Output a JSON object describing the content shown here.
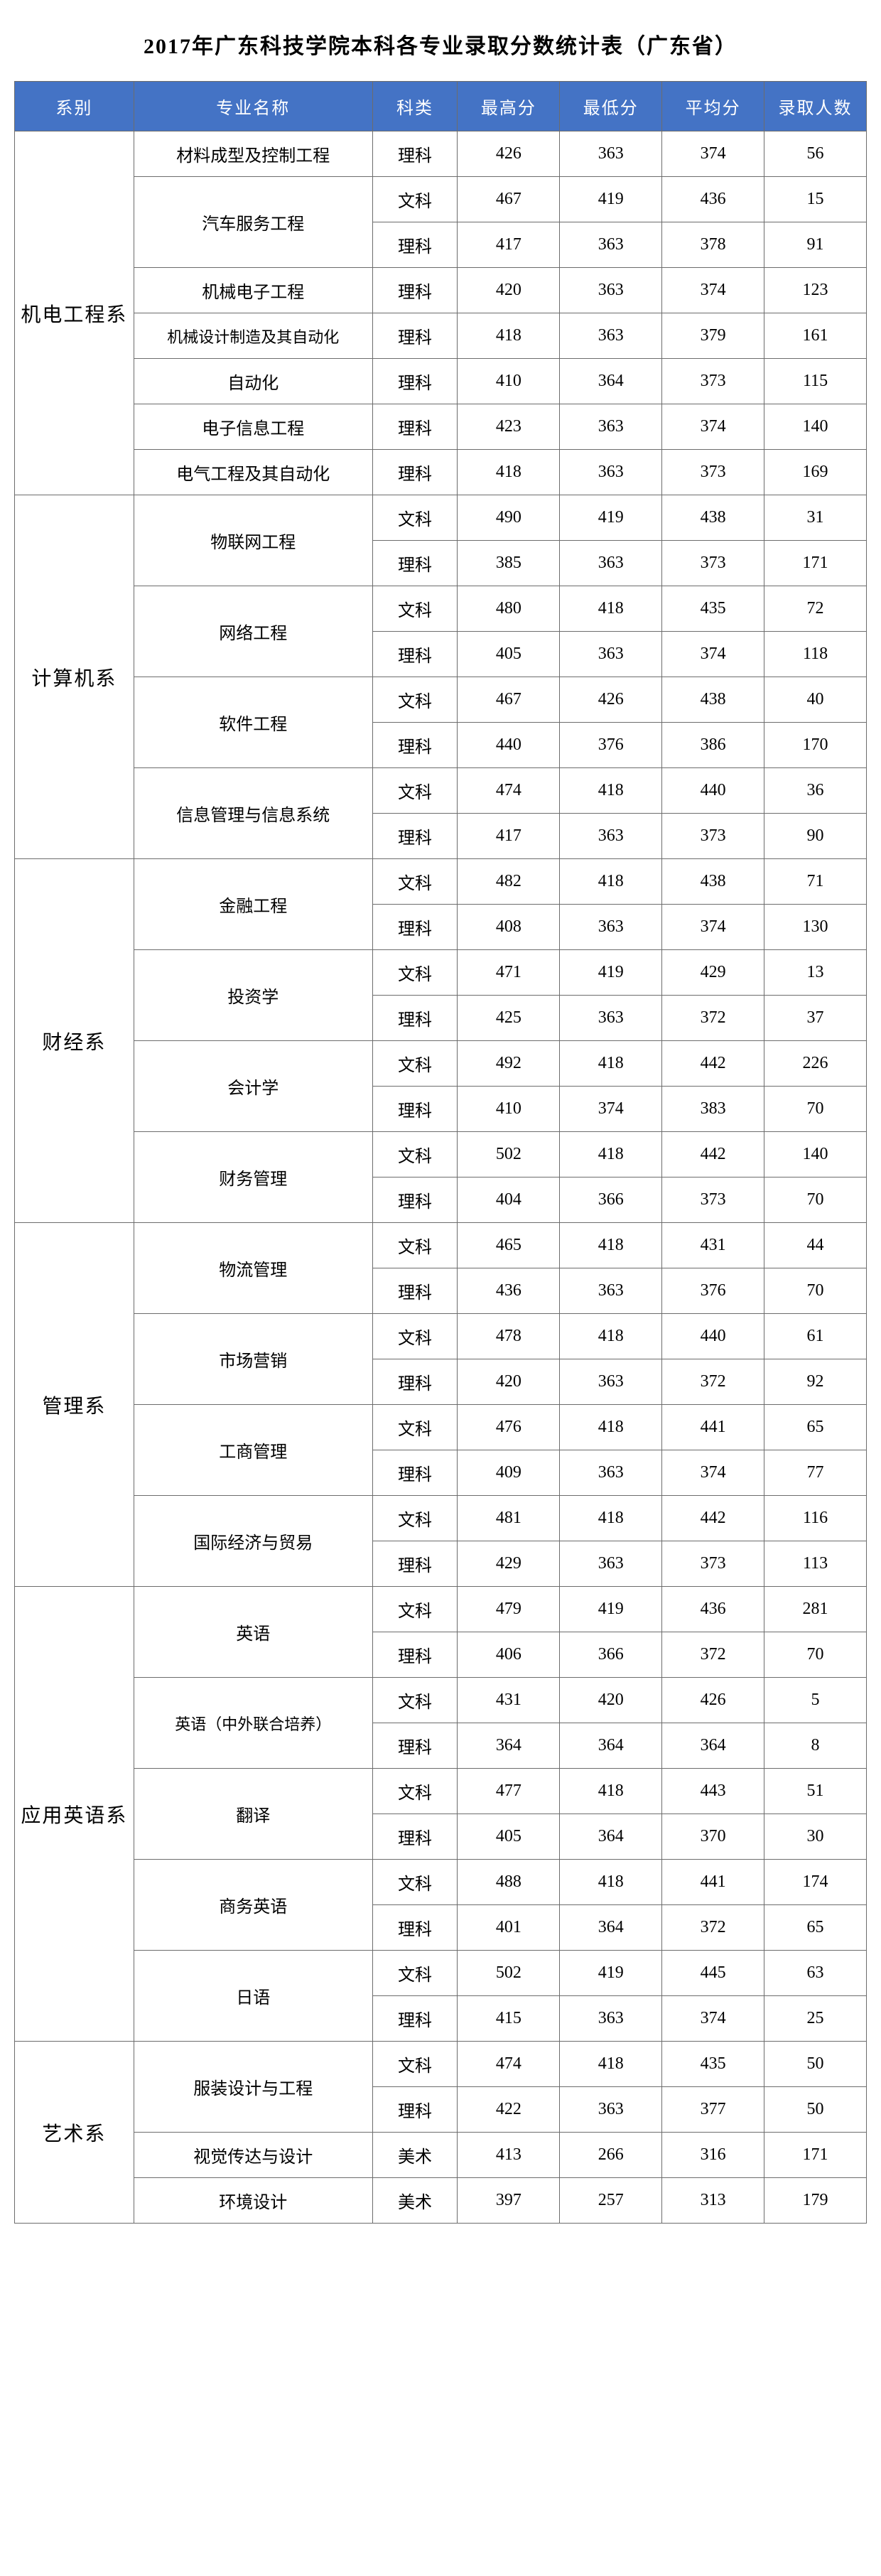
{
  "title": "2017年广东科技学院本科各专业录取分数统计表（广东省）",
  "headers": {
    "dept": "系别",
    "major": "专业名称",
    "category": "科类",
    "max": "最高分",
    "min": "最低分",
    "avg": "平均分",
    "count": "录取人数"
  },
  "colors": {
    "header_bg": "#4473c5",
    "header_fg": "#ffffff",
    "border": "#6c6c6c",
    "bg": "#ffffff",
    "text": "#000000"
  },
  "departments": [
    {
      "name": "机电工程系",
      "majors": [
        {
          "name": "材料成型及控制工程",
          "rows": [
            {
              "cat": "理科",
              "max": 426,
              "min": 363,
              "avg": 374,
              "cnt": 56
            }
          ]
        },
        {
          "name": "汽车服务工程",
          "rows": [
            {
              "cat": "文科",
              "max": 467,
              "min": 419,
              "avg": 436,
              "cnt": 15
            },
            {
              "cat": "理科",
              "max": 417,
              "min": 363,
              "avg": 378,
              "cnt": 91
            }
          ]
        },
        {
          "name": "机械电子工程",
          "rows": [
            {
              "cat": "理科",
              "max": 420,
              "min": 363,
              "avg": 374,
              "cnt": 123
            }
          ]
        },
        {
          "name": "机械设计制造及其自动化",
          "small": true,
          "rows": [
            {
              "cat": "理科",
              "max": 418,
              "min": 363,
              "avg": 379,
              "cnt": 161
            }
          ]
        },
        {
          "name": "自动化",
          "rows": [
            {
              "cat": "理科",
              "max": 410,
              "min": 364,
              "avg": 373,
              "cnt": 115
            }
          ]
        },
        {
          "name": "电子信息工程",
          "rows": [
            {
              "cat": "理科",
              "max": 423,
              "min": 363,
              "avg": 374,
              "cnt": 140
            }
          ]
        },
        {
          "name": "电气工程及其自动化",
          "rows": [
            {
              "cat": "理科",
              "max": 418,
              "min": 363,
              "avg": 373,
              "cnt": 169
            }
          ]
        }
      ]
    },
    {
      "name": "计算机系",
      "majors": [
        {
          "name": "物联网工程",
          "rows": [
            {
              "cat": "文科",
              "max": 490,
              "min": 419,
              "avg": 438,
              "cnt": 31
            },
            {
              "cat": "理科",
              "max": 385,
              "min": 363,
              "avg": 373,
              "cnt": 171
            }
          ]
        },
        {
          "name": "网络工程",
          "rows": [
            {
              "cat": "文科",
              "max": 480,
              "min": 418,
              "avg": 435,
              "cnt": 72
            },
            {
              "cat": "理科",
              "max": 405,
              "min": 363,
              "avg": 374,
              "cnt": 118
            }
          ]
        },
        {
          "name": "软件工程",
          "rows": [
            {
              "cat": "文科",
              "max": 467,
              "min": 426,
              "avg": 438,
              "cnt": 40
            },
            {
              "cat": "理科",
              "max": 440,
              "min": 376,
              "avg": 386,
              "cnt": 170
            }
          ]
        },
        {
          "name": "信息管理与信息系统",
          "rows": [
            {
              "cat": "文科",
              "max": 474,
              "min": 418,
              "avg": 440,
              "cnt": 36
            },
            {
              "cat": "理科",
              "max": 417,
              "min": 363,
              "avg": 373,
              "cnt": 90
            }
          ]
        }
      ]
    },
    {
      "name": "财经系",
      "majors": [
        {
          "name": "金融工程",
          "rows": [
            {
              "cat": "文科",
              "max": 482,
              "min": 418,
              "avg": 438,
              "cnt": 71
            },
            {
              "cat": "理科",
              "max": 408,
              "min": 363,
              "avg": 374,
              "cnt": 130
            }
          ]
        },
        {
          "name": "投资学",
          "rows": [
            {
              "cat": "文科",
              "max": 471,
              "min": 419,
              "avg": 429,
              "cnt": 13
            },
            {
              "cat": "理科",
              "max": 425,
              "min": 363,
              "avg": 372,
              "cnt": 37
            }
          ]
        },
        {
          "name": "会计学",
          "rows": [
            {
              "cat": "文科",
              "max": 492,
              "min": 418,
              "avg": 442,
              "cnt": 226
            },
            {
              "cat": "理科",
              "max": 410,
              "min": 374,
              "avg": 383,
              "cnt": 70
            }
          ]
        },
        {
          "name": "财务管理",
          "rows": [
            {
              "cat": "文科",
              "max": 502,
              "min": 418,
              "avg": 442,
              "cnt": 140
            },
            {
              "cat": "理科",
              "max": 404,
              "min": 366,
              "avg": 373,
              "cnt": 70
            }
          ]
        }
      ]
    },
    {
      "name": "管理系",
      "majors": [
        {
          "name": "物流管理",
          "rows": [
            {
              "cat": "文科",
              "max": 465,
              "min": 418,
              "avg": 431,
              "cnt": 44
            },
            {
              "cat": "理科",
              "max": 436,
              "min": 363,
              "avg": 376,
              "cnt": 70
            }
          ]
        },
        {
          "name": "市场营销",
          "rows": [
            {
              "cat": "文科",
              "max": 478,
              "min": 418,
              "avg": 440,
              "cnt": 61
            },
            {
              "cat": "理科",
              "max": 420,
              "min": 363,
              "avg": 372,
              "cnt": 92
            }
          ]
        },
        {
          "name": "工商管理",
          "rows": [
            {
              "cat": "文科",
              "max": 476,
              "min": 418,
              "avg": 441,
              "cnt": 65
            },
            {
              "cat": "理科",
              "max": 409,
              "min": 363,
              "avg": 374,
              "cnt": 77
            }
          ]
        },
        {
          "name": "国际经济与贸易",
          "rows": [
            {
              "cat": "文科",
              "max": 481,
              "min": 418,
              "avg": 442,
              "cnt": 116
            },
            {
              "cat": "理科",
              "max": 429,
              "min": 363,
              "avg": 373,
              "cnt": 113
            }
          ]
        }
      ]
    },
    {
      "name": "应用英语系",
      "majors": [
        {
          "name": "英语",
          "rows": [
            {
              "cat": "文科",
              "max": 479,
              "min": 419,
              "avg": 436,
              "cnt": 281
            },
            {
              "cat": "理科",
              "max": 406,
              "min": 366,
              "avg": 372,
              "cnt": 70
            }
          ]
        },
        {
          "name": "英语（中外联合培养）",
          "small": true,
          "rows": [
            {
              "cat": "文科",
              "max": 431,
              "min": 420,
              "avg": 426,
              "cnt": 5
            },
            {
              "cat": "理科",
              "max": 364,
              "min": 364,
              "avg": 364,
              "cnt": 8
            }
          ]
        },
        {
          "name": "翻译",
          "rows": [
            {
              "cat": "文科",
              "max": 477,
              "min": 418,
              "avg": 443,
              "cnt": 51
            },
            {
              "cat": "理科",
              "max": 405,
              "min": 364,
              "avg": 370,
              "cnt": 30
            }
          ]
        },
        {
          "name": "商务英语",
          "rows": [
            {
              "cat": "文科",
              "max": 488,
              "min": 418,
              "avg": 441,
              "cnt": 174
            },
            {
              "cat": "理科",
              "max": 401,
              "min": 364,
              "avg": 372,
              "cnt": 65
            }
          ]
        },
        {
          "name": "日语",
          "rows": [
            {
              "cat": "文科",
              "max": 502,
              "min": 419,
              "avg": 445,
              "cnt": 63
            },
            {
              "cat": "理科",
              "max": 415,
              "min": 363,
              "avg": 374,
              "cnt": 25
            }
          ]
        }
      ]
    },
    {
      "name": "艺术系",
      "majors": [
        {
          "name": "服装设计与工程",
          "rows": [
            {
              "cat": "文科",
              "max": 474,
              "min": 418,
              "avg": 435,
              "cnt": 50
            },
            {
              "cat": "理科",
              "max": 422,
              "min": 363,
              "avg": 377,
              "cnt": 50
            }
          ]
        },
        {
          "name": "视觉传达与设计",
          "rows": [
            {
              "cat": "美术",
              "max": 413,
              "min": 266,
              "avg": 316,
              "cnt": 171
            }
          ]
        },
        {
          "name": "环境设计",
          "rows": [
            {
              "cat": "美术",
              "max": 397,
              "min": 257,
              "avg": 313,
              "cnt": 179
            }
          ]
        }
      ]
    }
  ]
}
